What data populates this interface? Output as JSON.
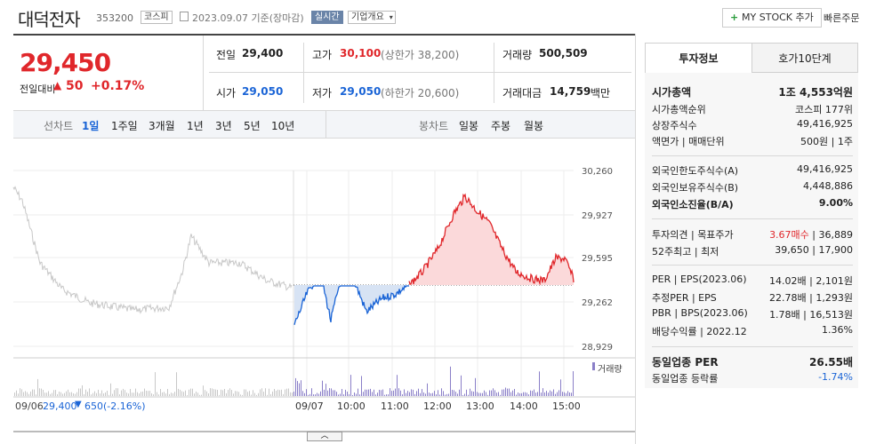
{
  "header": {
    "name": "대덕전자",
    "code": "353200",
    "market": "코스피",
    "date_label": "2023.09.07 기준(장마감)",
    "realtime": "실시간",
    "company_info": "기업개요",
    "mystock": "MY STOCK 추가",
    "quick_order": "빠른주문"
  },
  "price": {
    "current": "29,450",
    "change_label": "전일대비",
    "change": "50",
    "pct": "+0.17%"
  },
  "summary": {
    "prev_label": "전일",
    "prev": "29,400",
    "high_label": "고가",
    "high": "30,100",
    "high_limit": "(상한가 38,200)",
    "volume_label": "거래량",
    "volume": "500,509",
    "open_label": "시가",
    "open": "29,050",
    "low_label": "저가",
    "low": "29,050",
    "low_limit": "(하한가 20,600)",
    "amount_label": "거래대금",
    "amount": "14,759",
    "amount_unit": "백만"
  },
  "toolbar": {
    "line_label": "선차트",
    "periods": [
      "1일",
      "1주일",
      "3개월",
      "1년",
      "3년",
      "5년",
      "10년"
    ],
    "candle_label": "봉차트",
    "candles": [
      "일봉",
      "주봉",
      "월봉"
    ]
  },
  "chart": {
    "y_ticks": [
      "30,260",
      "29,927",
      "29,595",
      "29,262",
      "28,929"
    ],
    "x_ticks": [
      "09/07",
      "10:00",
      "11:00",
      "12:00",
      "13:00",
      "14:00",
      "15:00"
    ],
    "volume_legend": "거래량",
    "prev_day": "09/06",
    "prev_close": "29,400",
    "prev_change": "650",
    "prev_pct": "(-2.16%)"
  },
  "panel": {
    "tab_invest": "투자정보",
    "tab_quote": "호가10단계",
    "market_cap_label": "시가총액",
    "market_cap": "1조 4,553억원",
    "rank_label": "시가총액순위",
    "rank": "코스피 177위",
    "shares_label": "상장주식수",
    "shares": "49,416,925",
    "face_label": "액면가",
    "unit_label": "매매단위",
    "face": "500원",
    "unit": "1주",
    "foreign_limit_label": "외국인한도주식수(A)",
    "foreign_limit": "49,416,925",
    "foreign_hold_label": "외국인보유주식수(B)",
    "foreign_hold": "4,448,886",
    "foreign_ratio_label": "외국인소진율(B/A)",
    "foreign_ratio": "9.00%",
    "opinion_label": "투자의견",
    "target_label": "목표주가",
    "opinion": "3.67매수",
    "target": "36,889",
    "w52_high_label": "52주최고",
    "w52_low_label": "최저",
    "w52_high": "39,650",
    "w52_low": "17,900",
    "per_label": "PER",
    "eps_label": "EPS(2023.06)",
    "per": "14.02배",
    "eps": "2,101원",
    "est_per_label": "추정PER",
    "est_eps_label": "EPS",
    "est_per": "22.78배",
    "est_eps": "1,293원",
    "pbr_label": "PBR",
    "bps_label": "BPS(2023.06)",
    "pbr": "1.78배",
    "bps": "16,513원",
    "dividend_label": "배당수익률",
    "dividend_date": "2022.12",
    "dividend": "1.36%",
    "sector_per_label": "동일업종 PER",
    "sector_per": "26.55배",
    "sector_rate_label": "동일업종 등락률",
    "sector_rate": "-1.74%"
  },
  "colors": {
    "up": "#e0272b",
    "down": "#1a64d6",
    "grey_line": "#c8c8c8",
    "volume": "#8a7fc8"
  }
}
